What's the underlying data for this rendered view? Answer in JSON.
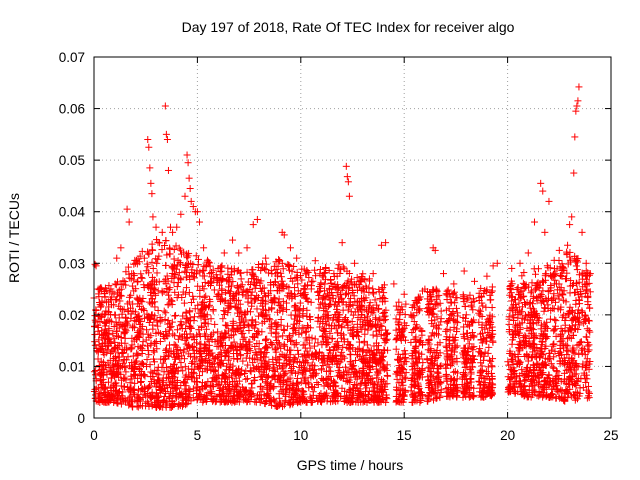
{
  "chart_data": {
    "type": "scatter",
    "title": "Day 197 of 2018, Rate Of TEC Index for receiver algo",
    "xlabel": "GPS time / hours",
    "ylabel": "ROTI / TECUs",
    "xlim": [
      0,
      25
    ],
    "ylim": [
      0,
      0.07
    ],
    "xticks": [
      0,
      5,
      10,
      15,
      20,
      25
    ],
    "yticks": [
      0,
      0.01,
      0.02,
      0.03,
      0.04,
      0.05,
      0.06,
      0.07
    ],
    "ytick_labels": [
      "0",
      "0.01",
      "0.02",
      "0.03",
      "0.04",
      "0.05",
      "0.06",
      "0.07"
    ],
    "grid": true,
    "marker": "plus",
    "color": "#ff0000",
    "series": [
      {
        "values_note_only": false,
        "points": [
          [
            0.05,
            0.0298
          ],
          [
            0.1,
            0.0295
          ],
          [
            0.2,
            0.025
          ],
          [
            0.3,
            0.022
          ],
          [
            0.5,
            0.02
          ],
          [
            1.1,
            0.031
          ],
          [
            1.3,
            0.033
          ],
          [
            1.6,
            0.0405
          ],
          [
            1.7,
            0.038
          ],
          [
            2.0,
            0.03
          ],
          [
            2.6,
            0.054
          ],
          [
            2.65,
            0.0525
          ],
          [
            2.7,
            0.0485
          ],
          [
            2.75,
            0.0455
          ],
          [
            2.8,
            0.0435
          ],
          [
            2.85,
            0.039
          ],
          [
            3.0,
            0.037
          ],
          [
            3.3,
            0.036
          ],
          [
            3.45,
            0.0605
          ],
          [
            3.5,
            0.055
          ],
          [
            3.55,
            0.054
          ],
          [
            3.6,
            0.048
          ],
          [
            3.7,
            0.037
          ],
          [
            3.8,
            0.036
          ],
          [
            4.0,
            0.037
          ],
          [
            4.2,
            0.0395
          ],
          [
            4.4,
            0.043
          ],
          [
            4.5,
            0.051
          ],
          [
            4.55,
            0.0495
          ],
          [
            4.6,
            0.0465
          ],
          [
            4.65,
            0.0445
          ],
          [
            4.7,
            0.042
          ],
          [
            4.8,
            0.041
          ],
          [
            4.9,
            0.04
          ],
          [
            5.0,
            0.04
          ],
          [
            5.1,
            0.038
          ],
          [
            5.3,
            0.033
          ],
          [
            5.6,
            0.028
          ],
          [
            6.0,
            0.029
          ],
          [
            6.3,
            0.032
          ],
          [
            6.7,
            0.0345
          ],
          [
            7.0,
            0.032
          ],
          [
            7.4,
            0.033
          ],
          [
            7.7,
            0.0375
          ],
          [
            7.9,
            0.0385
          ],
          [
            8.3,
            0.031
          ],
          [
            8.6,
            0.028
          ],
          [
            9.1,
            0.036
          ],
          [
            9.2,
            0.0355
          ],
          [
            9.5,
            0.033
          ],
          [
            9.8,
            0.031
          ],
          [
            10.3,
            0.0285
          ],
          [
            10.7,
            0.0305
          ],
          [
            11.2,
            0.029
          ],
          [
            11.6,
            0.028
          ],
          [
            12.0,
            0.034
          ],
          [
            12.2,
            0.0488
          ],
          [
            12.25,
            0.0468
          ],
          [
            12.3,
            0.0458
          ],
          [
            12.35,
            0.043
          ],
          [
            12.6,
            0.03
          ],
          [
            13.0,
            0.027
          ],
          [
            13.5,
            0.028
          ],
          [
            13.9,
            0.0335
          ],
          [
            14.1,
            0.034
          ],
          [
            14.5,
            0.026
          ],
          [
            15.0,
            0.024
          ],
          [
            15.5,
            0.0215
          ],
          [
            16.0,
            0.025
          ],
          [
            16.4,
            0.033
          ],
          [
            16.5,
            0.0325
          ],
          [
            16.9,
            0.028
          ],
          [
            17.4,
            0.026
          ],
          [
            17.9,
            0.0285
          ],
          [
            18.4,
            0.0265
          ],
          [
            19.0,
            0.0275
          ],
          [
            19.3,
            0.0295
          ],
          [
            19.5,
            0.03
          ],
          [
            20.2,
            0.029
          ],
          [
            20.6,
            0.03
          ],
          [
            21.0,
            0.032
          ],
          [
            21.3,
            0.038
          ],
          [
            21.6,
            0.0455
          ],
          [
            21.7,
            0.044
          ],
          [
            21.8,
            0.036
          ],
          [
            22.0,
            0.042
          ],
          [
            22.5,
            0.0325
          ],
          [
            22.9,
            0.0335
          ],
          [
            23.0,
            0.0375
          ],
          [
            23.1,
            0.039
          ],
          [
            23.2,
            0.0475
          ],
          [
            23.25,
            0.0545
          ],
          [
            23.3,
            0.0595
          ],
          [
            23.35,
            0.0605
          ],
          [
            23.4,
            0.0615
          ],
          [
            23.45,
            0.0642
          ],
          [
            23.6,
            0.036
          ],
          [
            23.8,
            0.03
          ],
          [
            24.0,
            0.028
          ]
        ]
      }
    ],
    "density_envelope": {
      "segments": [
        [
          0,
          13.9
        ],
        [
          13.9,
          14.2
        ],
        [
          14.6,
          15.1
        ],
        [
          15.3,
          15.9
        ],
        [
          16.1,
          16.8
        ],
        [
          17.0,
          17.6
        ],
        [
          17.8,
          18.4
        ],
        [
          18.6,
          19.3
        ],
        [
          20.0,
          24.0
        ]
      ],
      "x": [
        0,
        1,
        2,
        3,
        4,
        5,
        6,
        7,
        8,
        9,
        10,
        11,
        12,
        13,
        14,
        15,
        16,
        17,
        18,
        19,
        20,
        21,
        22,
        23,
        24
      ],
      "low": [
        0.003,
        0.003,
        0.002,
        0.002,
        0.002,
        0.003,
        0.003,
        0.003,
        0.003,
        0.002,
        0.003,
        0.003,
        0.003,
        0.003,
        0.003,
        0.003,
        0.003,
        0.004,
        0.004,
        0.004,
        0.005,
        0.004,
        0.004,
        0.003,
        0.004
      ],
      "high": [
        0.025,
        0.026,
        0.031,
        0.035,
        0.034,
        0.032,
        0.03,
        0.029,
        0.03,
        0.031,
        0.029,
        0.029,
        0.03,
        0.028,
        0.026,
        0.022,
        0.025,
        0.025,
        0.024,
        0.026,
        0.026,
        0.029,
        0.03,
        0.033,
        0.028
      ]
    }
  }
}
